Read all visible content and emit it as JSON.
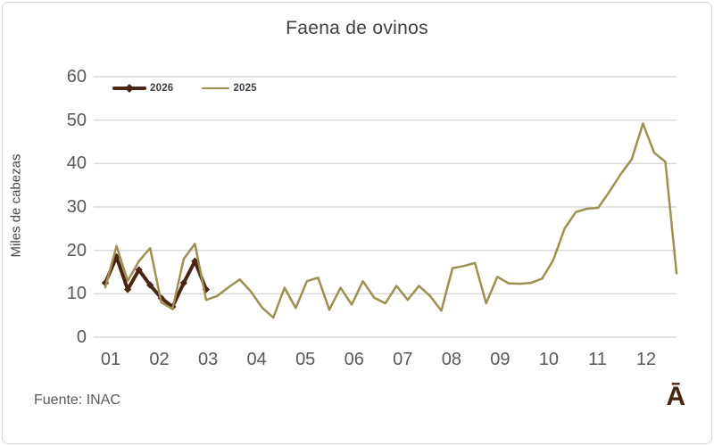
{
  "chart_data": {
    "type": "line",
    "title": "Faena de ovinos",
    "ylabel": "Miles de cabezas",
    "xlabel": "",
    "ylim": [
      0,
      60
    ],
    "yticks": [
      0,
      10,
      20,
      30,
      40,
      50,
      60
    ],
    "categories": [
      "01",
      "02",
      "03",
      "04",
      "05",
      "06",
      "07",
      "08",
      "09",
      "10",
      "11",
      "12"
    ],
    "x_unit": "week-of-year",
    "grid": "horizontal",
    "gridline_color": "#d9d9d9",
    "tick_color": "#595959",
    "legend_position": "top-left-inside",
    "series": [
      {
        "name": "2026",
        "color": "#4a2511",
        "marker": "diamond",
        "line_width": 4,
        "values": [
          12.5,
          18.5,
          11,
          15.5,
          12,
          9,
          7,
          12.5,
          17.5,
          11
        ]
      },
      {
        "name": "2025",
        "color": "#9c9150",
        "marker": "none",
        "line_width": 2.5,
        "values": [
          11.5,
          21,
          13,
          17.5,
          20.5,
          8,
          6.5,
          18,
          21.5,
          8.6,
          9.5,
          11.5,
          13.3,
          10.5,
          6.8,
          4.5,
          11.4,
          6.7,
          12.9,
          13.7,
          6.3,
          11.4,
          7.5,
          12.9,
          9.1,
          7.8,
          11.8,
          8.6,
          11.8,
          9.5,
          6.1,
          15.9,
          16.4,
          17.1,
          7.8,
          13.9,
          12.4,
          12.3,
          12.5,
          13.5,
          17.8,
          25,
          28.8,
          29.6,
          29.8,
          33.5,
          37.5,
          41,
          49.2,
          42.5,
          40.4,
          14.7
        ]
      }
    ]
  },
  "footer": {
    "source_note": "Fuente: INAC",
    "corner_glyph": "Ā"
  }
}
